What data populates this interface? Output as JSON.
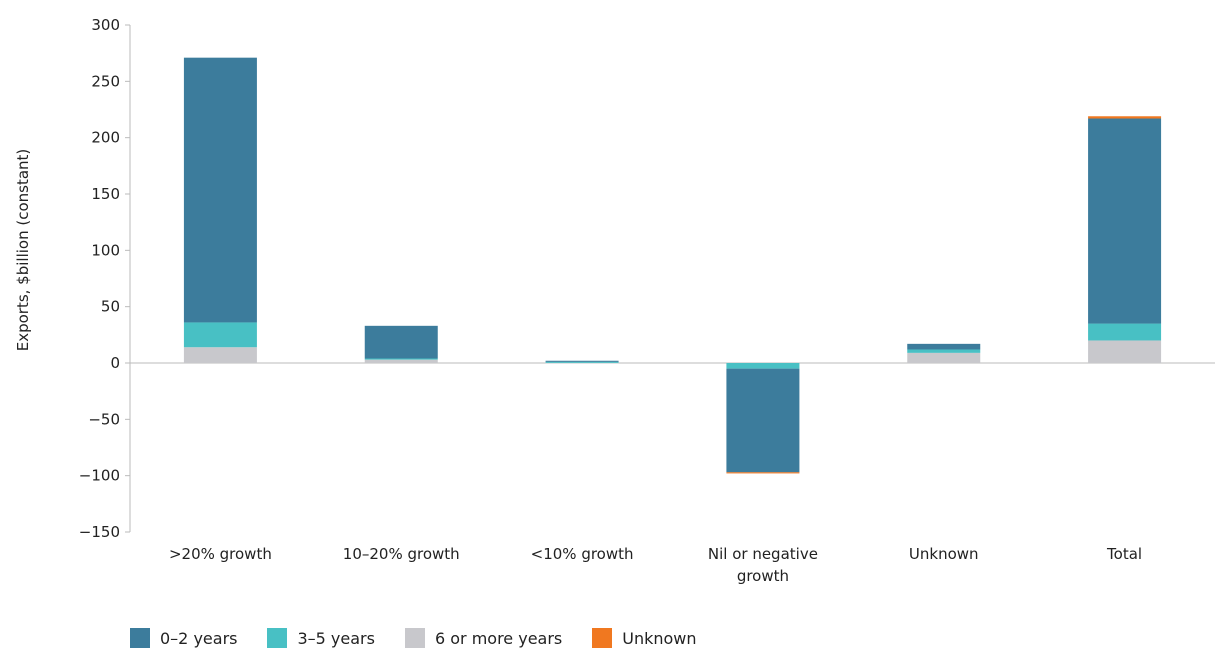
{
  "chart_data": {
    "type": "bar",
    "stacked": true,
    "ylabel": "Exports, $billion (constant)",
    "ylim": [
      -150,
      300
    ],
    "yticks": [
      300,
      250,
      200,
      150,
      100,
      50,
      0,
      -50,
      -100,
      -150
    ],
    "categories": [
      ">20% growth",
      "10–20% growth",
      "<10% growth",
      "Nil or negative growth",
      "Unknown",
      "Total"
    ],
    "category_lines": [
      [
        ">20% growth"
      ],
      [
        "10–20% growth"
      ],
      [
        "<10% growth"
      ],
      [
        "Nil or negative",
        "growth"
      ],
      [
        "Unknown"
      ],
      [
        "Total"
      ]
    ],
    "series": [
      {
        "name": "6 or more years",
        "color": "#c8c8cc",
        "values": [
          14,
          3,
          0.5,
          0,
          9,
          20
        ]
      },
      {
        "name": "3–5 years",
        "color": "#48c0c4",
        "values": [
          22,
          1,
          0.5,
          -5,
          3,
          15
        ]
      },
      {
        "name": "0–2 years",
        "color": "#3c7c9c",
        "values": [
          235,
          29,
          1,
          -92,
          5,
          182
        ]
      },
      {
        "name": "Unknown",
        "color": "#f07820",
        "values": [
          0,
          0,
          0,
          -1,
          0,
          2
        ]
      }
    ],
    "legend_order": [
      "0–2 years",
      "3–5 years",
      "6 or more years",
      "Unknown"
    ],
    "legend_position": "bottom-left",
    "grid": false
  }
}
